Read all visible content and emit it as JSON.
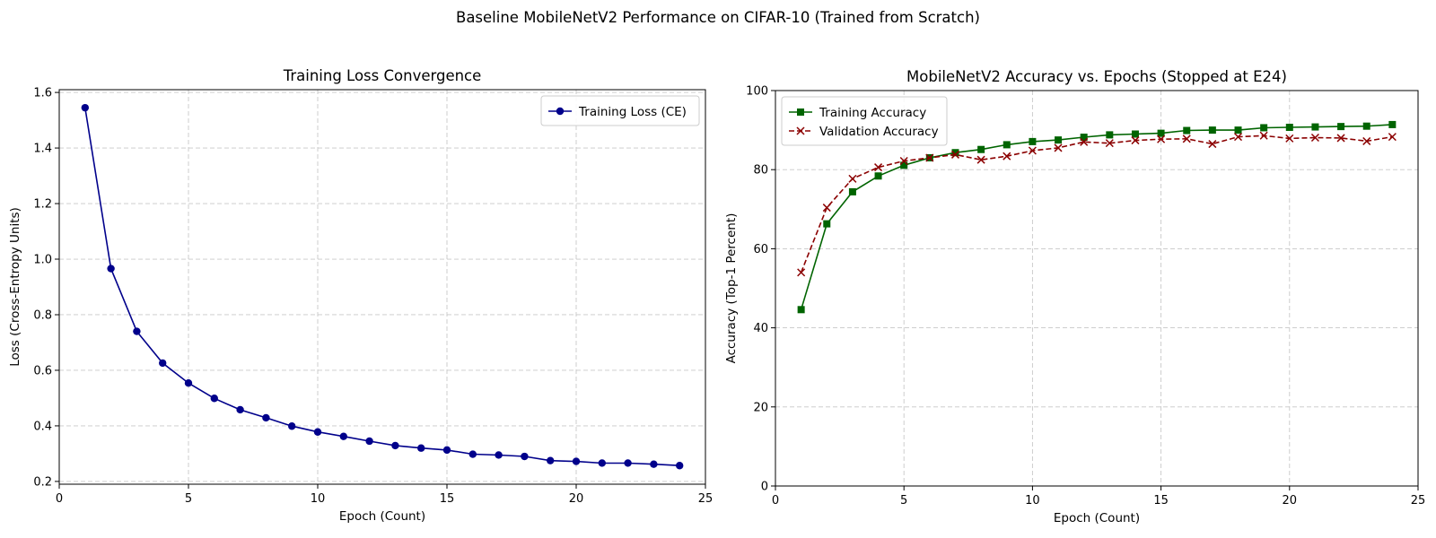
{
  "suptitle": "Baseline MobileNetV2 Performance on CIFAR-10 (Trained from Scratch)",
  "chart_data": [
    {
      "type": "line",
      "title": "Training Loss Convergence",
      "xlabel": "Epoch (Count)",
      "ylabel": "Loss (Cross-Entropy Units)",
      "xlim": [
        0,
        25
      ],
      "ylim": [
        0.19,
        1.61
      ],
      "xticks": [
        0,
        5,
        10,
        15,
        20,
        25
      ],
      "yticks": [
        0.2,
        0.4,
        0.6,
        0.8,
        1.0,
        1.2,
        1.4,
        1.6
      ],
      "ytick_labels": [
        "0.2",
        "0.4",
        "0.6",
        "0.8",
        "1.0",
        "1.2",
        "1.4",
        "1.6"
      ],
      "grid": true,
      "legend_position": "top-right",
      "x": [
        1,
        2,
        3,
        4,
        5,
        6,
        7,
        8,
        9,
        10,
        11,
        12,
        13,
        14,
        15,
        16,
        17,
        18,
        19,
        20,
        21,
        22,
        23,
        24
      ],
      "series": [
        {
          "name": "Training Loss (CE)",
          "color": "#00008b",
          "marker": "circle",
          "linestyle": "solid",
          "values": [
            1.545,
            0.966,
            0.74,
            0.626,
            0.554,
            0.499,
            0.458,
            0.429,
            0.399,
            0.378,
            0.362,
            0.345,
            0.329,
            0.32,
            0.313,
            0.298,
            0.295,
            0.29,
            0.275,
            0.272,
            0.266,
            0.266,
            0.262,
            0.257
          ]
        }
      ]
    },
    {
      "type": "line",
      "title": "MobileNetV2 Accuracy vs. Epochs (Stopped at E24)",
      "xlabel": "Epoch (Count)",
      "ylabel": "Accuracy (Top-1 Percent)",
      "xlim": [
        0,
        25
      ],
      "ylim": [
        0,
        100
      ],
      "xticks": [
        0,
        5,
        10,
        15,
        20,
        25
      ],
      "yticks": [
        0,
        20,
        40,
        60,
        80,
        100
      ],
      "ytick_labels": [
        "0",
        "20",
        "40",
        "60",
        "80",
        "100"
      ],
      "grid": true,
      "legend_position": "top-left",
      "x": [
        1,
        2,
        3,
        4,
        5,
        6,
        7,
        8,
        9,
        10,
        11,
        12,
        13,
        14,
        15,
        16,
        17,
        18,
        19,
        20,
        21,
        22,
        23,
        24
      ],
      "series": [
        {
          "name": "Training Accuracy",
          "color": "#006400",
          "marker": "square",
          "linestyle": "solid",
          "values": [
            44.6,
            66.3,
            74.4,
            78.4,
            81.1,
            83.0,
            84.3,
            85.1,
            86.3,
            87.1,
            87.5,
            88.2,
            88.8,
            89.0,
            89.2,
            89.9,
            90.0,
            90.0,
            90.6,
            90.7,
            90.8,
            90.9,
            91.0,
            91.4
          ]
        },
        {
          "name": "Validation Accuracy",
          "color": "#8b0000",
          "marker": "x",
          "linestyle": "dashed",
          "values": [
            54.0,
            70.4,
            77.7,
            80.6,
            82.2,
            83.0,
            83.8,
            82.5,
            83.4,
            84.8,
            85.5,
            87.0,
            86.7,
            87.4,
            87.7,
            87.8,
            86.5,
            88.3,
            88.6,
            87.9,
            88.1,
            88.0,
            87.2,
            88.3
          ]
        }
      ]
    }
  ]
}
